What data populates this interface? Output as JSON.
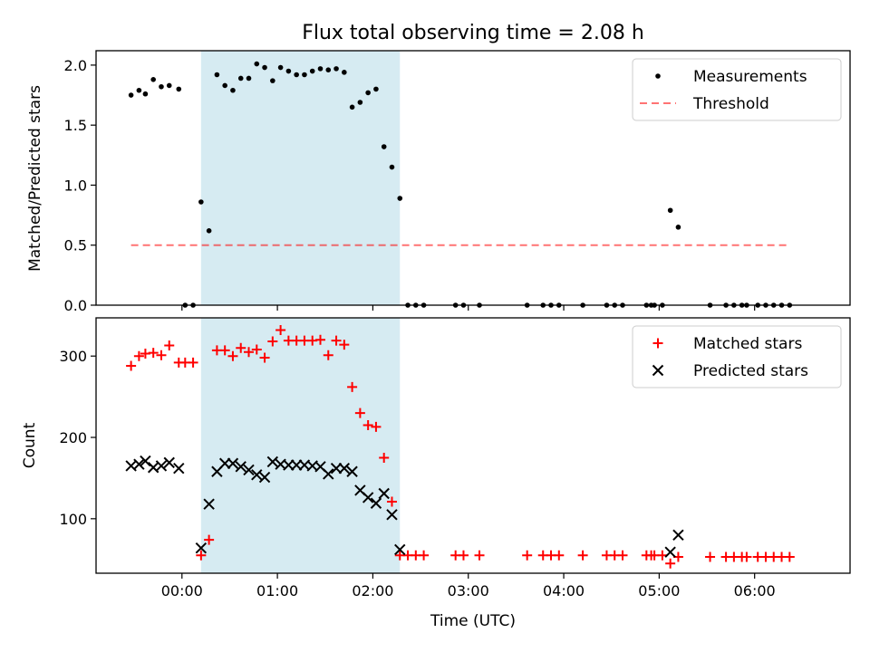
{
  "figure": {
    "title": "Flux total observing time = 2.08 h",
    "xlabel": "Time (UTC)"
  },
  "colors": {
    "highlight": "#add8e6",
    "measurements": "#000000",
    "threshold": "#ff0000",
    "matched": "#ff0000",
    "predicted": "#000000"
  },
  "chart_data": [
    {
      "type": "scatter",
      "ylabel": "Matched/Predicted stars",
      "xlim": [
        "-00:54",
        "07:00"
      ],
      "ylim": [
        0,
        2.12
      ],
      "x_ticks": [
        "00:00",
        "01:00",
        "02:00",
        "03:00",
        "04:00",
        "05:00",
        "06:00"
      ],
      "y_ticks": [
        "0.0",
        "0.5",
        "1.0",
        "1.5",
        "2.0"
      ],
      "highlight_span": [
        "00:12",
        "02:17"
      ],
      "legend": [
        "Measurements",
        "Threshold"
      ],
      "legend_position": "top-right",
      "series": [
        {
          "name": "Measurements",
          "style": "dots",
          "x": [
            "-00:32",
            "-00:27",
            "-00:23",
            "-00:18",
            "-00:13",
            "-00:08",
            "-00:02",
            "00:02",
            "00:07",
            "00:12",
            "00:17",
            "00:22",
            "00:27",
            "00:32",
            "00:37",
            "00:42",
            "00:47",
            "00:52",
            "00:57",
            "01:02",
            "01:07",
            "01:12",
            "01:17",
            "01:22",
            "01:27",
            "01:32",
            "01:37",
            "01:42",
            "01:47",
            "01:52",
            "01:57",
            "02:02",
            "02:07",
            "02:12",
            "02:17",
            "02:22",
            "02:27",
            "02:32",
            "02:52",
            "02:57",
            "03:07",
            "03:37",
            "03:47",
            "03:52",
            "03:57",
            "04:12",
            "04:27",
            "04:32",
            "04:37",
            "04:52",
            "04:55",
            "04:57",
            "05:02",
            "05:07",
            "05:12",
            "05:32",
            "05:42",
            "05:47",
            "05:52",
            "05:55",
            "06:02",
            "06:07",
            "06:12",
            "06:17",
            "06:22"
          ],
          "y": [
            1.75,
            1.79,
            1.76,
            1.88,
            1.82,
            1.83,
            1.8,
            0,
            0,
            0.86,
            0.62,
            1.92,
            1.83,
            1.79,
            1.89,
            1.89,
            2.01,
            1.98,
            1.87,
            1.98,
            1.95,
            1.92,
            1.92,
            1.95,
            1.97,
            1.96,
            1.97,
            1.94,
            1.65,
            1.69,
            1.77,
            1.8,
            1.32,
            1.15,
            0.89,
            0,
            0,
            0,
            0,
            0,
            0,
            0,
            0,
            0,
            0,
            0,
            0,
            0,
            0,
            0,
            0,
            0,
            0,
            0.79,
            0.65,
            0,
            0,
            0,
            0,
            0,
            0,
            0,
            0,
            0,
            0
          ]
        },
        {
          "name": "Threshold",
          "style": "dashed-line",
          "x": [
            "-00:32",
            "06:22"
          ],
          "y": [
            0.5,
            0.5
          ]
        }
      ]
    },
    {
      "type": "scatter",
      "ylabel": "Count",
      "xlim": [
        "-00:54",
        "07:00"
      ],
      "ylim": [
        33,
        347
      ],
      "x_ticks": [
        "00:00",
        "01:00",
        "02:00",
        "03:00",
        "04:00",
        "05:00",
        "06:00"
      ],
      "y_ticks": [
        "100",
        "200",
        "300"
      ],
      "highlight_span": [
        "00:12",
        "02:17"
      ],
      "legend": [
        "Matched stars",
        "Predicted stars"
      ],
      "legend_position": "top-right",
      "series": [
        {
          "name": "Matched stars",
          "marker": "+",
          "x": [
            "-00:32",
            "-00:27",
            "-00:23",
            "-00:18",
            "-00:13",
            "-00:08",
            "-00:02",
            "00:02",
            "00:07",
            "00:12",
            "00:17",
            "00:22",
            "00:27",
            "00:32",
            "00:37",
            "00:42",
            "00:47",
            "00:52",
            "00:57",
            "01:02",
            "01:07",
            "01:12",
            "01:17",
            "01:22",
            "01:27",
            "01:32",
            "01:37",
            "01:42",
            "01:47",
            "01:52",
            "01:57",
            "02:02",
            "02:07",
            "02:12",
            "02:17",
            "02:22",
            "02:27",
            "02:32",
            "02:52",
            "02:57",
            "03:07",
            "03:37",
            "03:47",
            "03:52",
            "03:57",
            "04:12",
            "04:27",
            "04:32",
            "04:37",
            "04:52",
            "04:55",
            "04:57",
            "05:02",
            "05:07",
            "05:12",
            "05:32",
            "05:42",
            "05:47",
            "05:52",
            "05:55",
            "06:02",
            "06:07",
            "06:12",
            "06:17",
            "06:22"
          ],
          "y": [
            288,
            300,
            303,
            304,
            301,
            313,
            292,
            292,
            292,
            55,
            74,
            307,
            307,
            300,
            310,
            305,
            308,
            298,
            318,
            332,
            319,
            319,
            319,
            319,
            320,
            301,
            319,
            314,
            262,
            230,
            215,
            213,
            175,
            121,
            55,
            55,
            55,
            55,
            55,
            55,
            55,
            55,
            55,
            55,
            55,
            55,
            55,
            55,
            55,
            55,
            55,
            55,
            55,
            45,
            53,
            53,
            53,
            53,
            53,
            53,
            53,
            53,
            53,
            53,
            53
          ]
        },
        {
          "name": "Predicted stars",
          "marker": "x",
          "x": [
            "-00:32",
            "-00:27",
            "-00:23",
            "-00:18",
            "-00:13",
            "-00:08",
            "-00:02",
            "00:12",
            "00:17",
            "00:22",
            "00:27",
            "00:32",
            "00:37",
            "00:42",
            "00:47",
            "00:52",
            "00:57",
            "01:02",
            "01:07",
            "01:12",
            "01:17",
            "01:22",
            "01:27",
            "01:32",
            "01:37",
            "01:42",
            "01:47",
            "01:52",
            "01:57",
            "02:02",
            "02:07",
            "02:12",
            "02:17",
            "05:07",
            "05:12"
          ],
          "y": [
            165,
            167,
            171,
            163,
            165,
            169,
            162,
            64,
            118,
            158,
            168,
            168,
            164,
            160,
            154,
            151,
            170,
            167,
            166,
            166,
            166,
            165,
            164,
            155,
            162,
            162,
            158,
            135,
            126,
            119,
            131,
            105,
            62,
            59,
            80
          ]
        }
      ]
    }
  ]
}
